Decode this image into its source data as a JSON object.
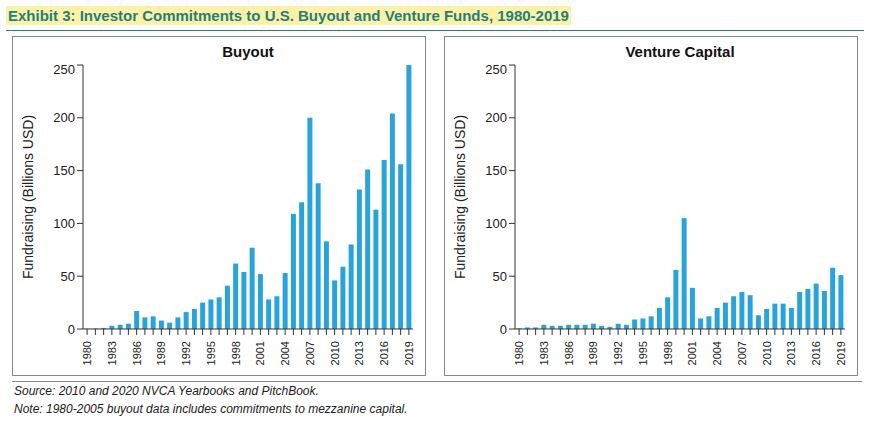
{
  "title": "Exhibit 3: Investor Commitments to U.S. Buyout and Venture Funds, 1980-2019",
  "source": "Source: 2010 and 2020 NVCA Yearbooks and PitchBook.",
  "note": "Note: 1980-2005 buyout data includes commitments to mezzanine capital.",
  "chart_data": [
    {
      "type": "bar",
      "title": "Buyout",
      "ylabel": "Fundraising (Billions USD)",
      "categories": [
        "1980",
        null,
        null,
        "1983",
        null,
        null,
        "1986",
        null,
        null,
        "1989",
        null,
        null,
        "1992",
        null,
        null,
        "1995",
        null,
        null,
        "1998",
        null,
        null,
        "2001",
        null,
        null,
        "2004",
        null,
        null,
        "2007",
        null,
        null,
        "2010",
        null,
        null,
        "2013",
        null,
        null,
        "2016",
        null,
        null,
        "2019"
      ],
      "values": [
        0.3,
        0.5,
        1,
        3,
        4,
        5,
        17,
        11,
        12,
        8,
        6,
        11,
        16,
        19,
        25,
        28,
        30,
        41,
        62,
        54,
        77,
        52,
        28,
        31,
        53,
        109,
        120,
        200,
        138,
        83,
        46,
        59,
        80,
        132,
        151,
        113,
        160,
        204,
        156,
        250
      ],
      "color": "#29a3dc",
      "ylim": [
        0,
        250
      ],
      "yticks": [
        0,
        50,
        100,
        150,
        200,
        250
      ],
      "grid": false
    },
    {
      "type": "bar",
      "title": "Venture Capital",
      "ylabel": "Fundraising (Billions USD)",
      "categories": [
        "1980",
        null,
        null,
        "1983",
        null,
        null,
        "1986",
        null,
        null,
        "1989",
        null,
        null,
        "1992",
        null,
        null,
        "1995",
        null,
        null,
        "1998",
        null,
        null,
        "2001",
        null,
        null,
        "2004",
        null,
        null,
        "2007",
        null,
        null,
        "2010",
        null,
        null,
        "2013",
        null,
        null,
        "2016",
        null,
        null,
        "2019"
      ],
      "values": [
        0.6,
        1.5,
        1.5,
        4,
        3,
        3,
        4,
        4,
        4,
        5,
        3,
        2,
        5,
        4,
        9,
        10,
        12,
        20,
        30,
        56,
        105,
        39,
        10,
        12,
        20,
        25,
        31,
        35,
        32,
        13,
        19,
        24,
        24,
        20,
        35,
        38,
        43,
        36,
        58,
        51
      ],
      "color": "#29a3dc",
      "ylim": [
        0,
        250
      ],
      "yticks": [
        0,
        50,
        100,
        150,
        200,
        250
      ],
      "grid": false
    }
  ]
}
